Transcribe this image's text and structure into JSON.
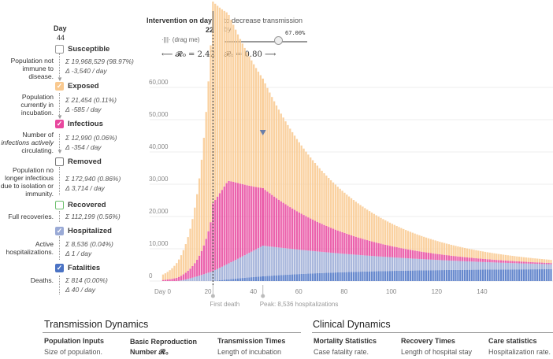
{
  "sidebar": {
    "day_label": "Day",
    "day_value": "44",
    "compartments": [
      {
        "id": "susceptible",
        "name": "Susceptible",
        "checked": false,
        "color": "#ffffff",
        "border": "#999999",
        "desc": [
          "Population not",
          "immune to",
          "disease."
        ],
        "sum": "19,968,529 (98.97%)",
        "delta": "-3,540 / day"
      },
      {
        "id": "exposed",
        "name": "Exposed",
        "checked": true,
        "color": "#f9c98f",
        "border": "#f9c98f",
        "desc": [
          "Population",
          "currently in",
          "incubation."
        ],
        "sum": "21,454 (0.11%)",
        "delta": "-585 / day"
      },
      {
        "id": "infectious",
        "name": "Infectious",
        "checked": true,
        "color": "#e8479e",
        "border": "#e8479e",
        "desc": [
          "Number of",
          "infections actively",
          "circulating."
        ],
        "sum": "12,990 (0.06%)",
        "delta": "-354 / day"
      },
      {
        "id": "removed",
        "name": "Removed",
        "checked": false,
        "color": "#ffffff",
        "border": "#777777",
        "desc": [
          "Population no",
          "longer infectious",
          "due to isolation or",
          "immunity."
        ],
        "sum": "172,940 (0.86%)",
        "delta": "3,714 / day"
      },
      {
        "id": "recovered",
        "name": "Recovered",
        "checked": false,
        "color": "#ffffff",
        "border": "#6cbf6c",
        "desc": [
          "Full recoveries."
        ],
        "sum": "112,199 (0.56%)",
        "delta": ""
      },
      {
        "id": "hospitalized",
        "name": "Hospitalized",
        "checked": true,
        "color": "#9aaad6",
        "border": "#9aaad6",
        "desc": [
          "Active",
          "hospitalizations."
        ],
        "sum": "8,536 (0.04%)",
        "delta": "1 / day"
      },
      {
        "id": "fatalities",
        "name": "Fatalities",
        "checked": true,
        "color": "#4b73c4",
        "border": "#4b73c4",
        "desc": [
          "Deaths."
        ],
        "sum": "814 (0.00%)",
        "delta": "40 / day"
      }
    ]
  },
  "intervention": {
    "title": "Intervention on day",
    "day": "22",
    "drag": "(drag me)",
    "decrease_text": "to decrease transmission by",
    "percent": "67.00%",
    "percent_value": 0.67,
    "r0_text": "⟵ 𝓡₀ = 2.42",
    "rt_text": "𝓡ₜ = 0.80 ⟶"
  },
  "chart_data": {
    "type": "bar",
    "stacked": true,
    "x_range": [
      0,
      200
    ],
    "ylim": [
      0,
      70000
    ],
    "y_ticks": [
      0,
      10000,
      20000,
      30000,
      40000,
      50000,
      60000
    ],
    "y_tick_labels": [
      "0",
      "10,000",
      "20,000",
      "30,000",
      "40,000",
      "50,000",
      "60,000"
    ],
    "x_ticks": [
      0,
      20,
      40,
      60,
      80,
      100,
      120,
      140
    ],
    "x_tick_labels": [
      "Day 0",
      "20",
      "40",
      "60",
      "80",
      "100",
      "120",
      "140"
    ],
    "series": [
      {
        "id": "fatalities",
        "color": "#4b73c4"
      },
      {
        "id": "hospitalized",
        "color": "#9aaad6"
      },
      {
        "id": "infectious",
        "color": "#e8479e"
      },
      {
        "id": "exposed",
        "color": "#f9c98f"
      }
    ],
    "intervention_day": 22,
    "selected_day": 44,
    "annotations": [
      {
        "day": 22,
        "label": "First death"
      },
      {
        "day": 44,
        "label": "Peak: 8,536 hospitalizations"
      }
    ]
  },
  "bottom": {
    "transmission_title": "Transmission Dynamics",
    "clinical_title": "Clinical Dynamics",
    "columns": [
      {
        "header": "Population Inputs",
        "text": "Size of population."
      },
      {
        "header": "Basic Reproduction Number 𝓡₀",
        "text": ""
      },
      {
        "header": "Transmission Times",
        "text": "Length of incubation"
      },
      {
        "header": "Mortality Statistics",
        "text": "Case fatality rate."
      },
      {
        "header": "Recovery Times",
        "text": "Length of hospital stay"
      },
      {
        "header": "Care statistics",
        "text": "Hospitalization rate."
      }
    ]
  }
}
